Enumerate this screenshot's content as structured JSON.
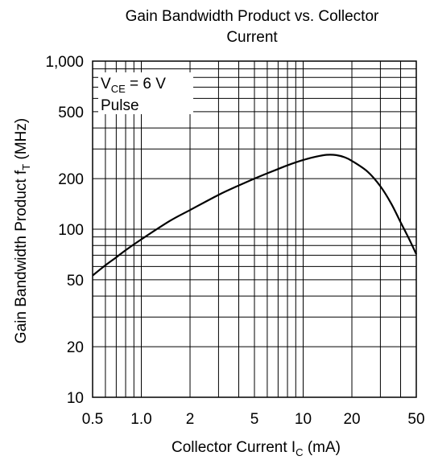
{
  "chart_data": {
    "type": "line",
    "title_lines": [
      "Gain Bandwidth Product vs. Collector",
      "Current"
    ],
    "xlabel": {
      "main": "Collector Current  I",
      "sub": "C",
      "unit": "  (mA)"
    },
    "ylabel": {
      "main": "Gain Bandwidth Product  f",
      "sub": "T",
      "unit": "  (MHz)"
    },
    "x_scale": "log",
    "y_scale": "log",
    "xlim": [
      0.5,
      50
    ],
    "ylim": [
      10,
      1000
    ],
    "x_ticks": [
      {
        "value": 0.5,
        "label": "0.5"
      },
      {
        "value": 1,
        "label": "1.0"
      },
      {
        "value": 2,
        "label": "2"
      },
      {
        "value": 5,
        "label": "5"
      },
      {
        "value": 10,
        "label": "10"
      },
      {
        "value": 20,
        "label": "20"
      },
      {
        "value": 50,
        "label": "50"
      }
    ],
    "y_ticks": [
      {
        "value": 10,
        "label": "10"
      },
      {
        "value": 20,
        "label": "20"
      },
      {
        "value": 50,
        "label": "50"
      },
      {
        "value": 100,
        "label": "100"
      },
      {
        "value": 200,
        "label": "200"
      },
      {
        "value": 500,
        "label": "500"
      },
      {
        "value": 1000,
        "label": "1,000"
      }
    ],
    "x_gridlines": [
      0.6,
      0.7,
      0.8,
      0.9,
      1,
      2,
      3,
      4,
      5,
      6,
      7,
      8,
      9,
      10,
      20,
      30,
      40
    ],
    "y_gridlines": [
      20,
      30,
      40,
      50,
      60,
      70,
      80,
      90,
      100,
      200,
      300,
      400,
      500,
      600,
      700,
      800,
      900
    ],
    "grid": true,
    "annotations": [
      {
        "main": "V",
        "sub": "CE",
        "rest": " = 6 V"
      },
      {
        "main": "Pulse"
      }
    ],
    "series": [
      {
        "x": [
          0.5,
          0.6,
          0.7,
          0.8,
          1,
          1.5,
          2,
          3,
          4,
          5,
          6,
          7,
          8,
          10,
          12,
          14,
          16,
          18,
          20,
          25,
          30,
          35,
          40,
          45,
          50
        ],
        "y": [
          53,
          61,
          68,
          75,
          87,
          112,
          130,
          160,
          182,
          200,
          215,
          228,
          240,
          258,
          270,
          277,
          276,
          268,
          255,
          220,
          180,
          142,
          110,
          88,
          71
        ]
      }
    ]
  }
}
